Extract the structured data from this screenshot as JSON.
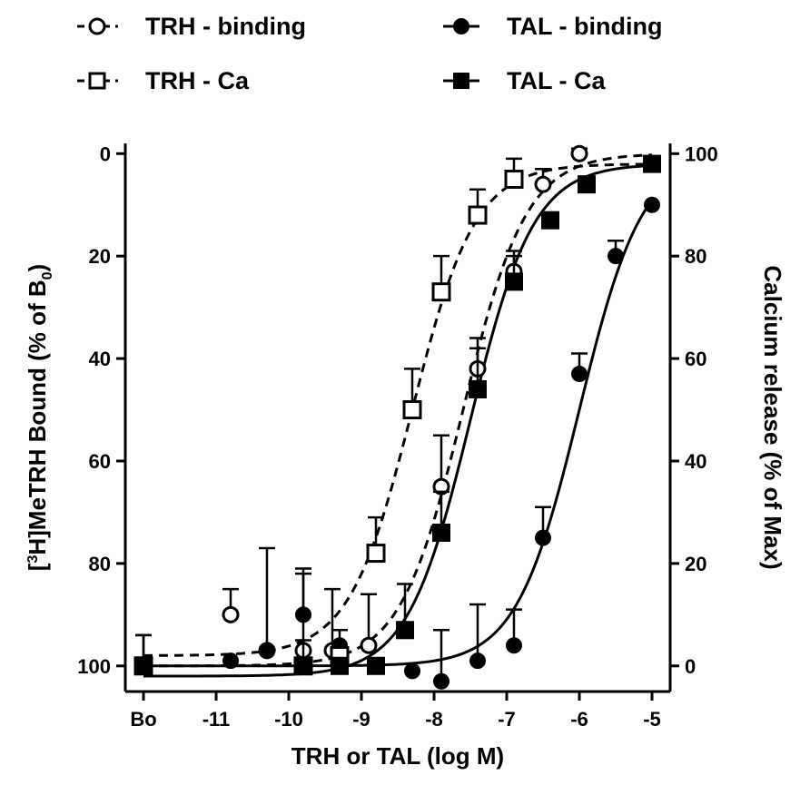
{
  "chart_data": {
    "type": "scatter",
    "title": "",
    "xlabel": "TRH or TAL (log M)",
    "ylabel_left": "[³H]MeTRH Bound (% of B₀)",
    "ylabel_left_parts": {
      "pre": "[",
      "sup": "3",
      "mid": "H]MeTRH Bound (% of B",
      "sub": "0",
      "post": ")"
    },
    "ylabel_right": "Calcium release (% of Max)",
    "x_ticks": [
      {
        "label": "Bo",
        "value": -12
      },
      {
        "label": "-11",
        "value": -11
      },
      {
        "label": "-10",
        "value": -10
      },
      {
        "label": "-9",
        "value": -9
      },
      {
        "label": "-8",
        "value": -8
      },
      {
        "label": "-7",
        "value": -7
      },
      {
        "label": "-6",
        "value": -6
      },
      {
        "label": "-5",
        "value": -5
      }
    ],
    "xlim": [
      -12.25,
      -4.75
    ],
    "ylim_left": [
      105,
      -2
    ],
    "y_ticks_left": [
      "0",
      "20",
      "40",
      "60",
      "80",
      "100"
    ],
    "ylim_right": [
      -5,
      102
    ],
    "y_ticks_right": [
      "0",
      "20",
      "40",
      "60",
      "80",
      "100"
    ],
    "grid": false,
    "legend_position": "top",
    "series": [
      {
        "name": "TRH - binding",
        "axis": "left",
        "marker": "open-circle",
        "line": "dashed",
        "points": [
          {
            "x": -12,
            "y": 100,
            "err": 6
          },
          {
            "x": -10.8,
            "y": 90,
            "err": 5
          },
          {
            "x": -10.3,
            "y": 97,
            "err": 20
          },
          {
            "x": -9.8,
            "y": 97,
            "err": 15
          },
          {
            "x": -9.4,
            "y": 97,
            "err": 12
          },
          {
            "x": -8.9,
            "y": 96,
            "err": 10
          },
          {
            "x": -7.9,
            "y": 65,
            "err": 10
          },
          {
            "x": -7.4,
            "y": 42,
            "err": 6
          },
          {
            "x": -6.9,
            "y": 23,
            "err": 4
          },
          {
            "x": -6.5,
            "y": 6,
            "err": 3
          },
          {
            "x": -6.0,
            "y": 0,
            "err": 1
          }
        ],
        "fit": {
          "top": 100,
          "bottom": 0,
          "logIC50": -7.6,
          "slope": 1
        }
      },
      {
        "name": "TAL - binding",
        "axis": "left",
        "marker": "filled-circle",
        "line": "solid",
        "points": [
          {
            "x": -12,
            "y": 100,
            "err": 0
          },
          {
            "x": -10.8,
            "y": 99,
            "err": 0
          },
          {
            "x": -10.3,
            "y": 97,
            "err": 0
          },
          {
            "x": -9.8,
            "y": 90,
            "err": 9
          },
          {
            "x": -9.3,
            "y": 96,
            "err": 0
          },
          {
            "x": -8.3,
            "y": 101,
            "err": 0
          },
          {
            "x": -7.9,
            "y": 103,
            "err": 10
          },
          {
            "x": -7.4,
            "y": 99,
            "err": 11
          },
          {
            "x": -6.9,
            "y": 96,
            "err": 7
          },
          {
            "x": -6.5,
            "y": 75,
            "err": 6
          },
          {
            "x": -6.0,
            "y": 43,
            "err": 4
          },
          {
            "x": -5.5,
            "y": 20,
            "err": 3
          },
          {
            "x": -5.0,
            "y": 10,
            "err": 0
          }
        ],
        "fit": {
          "top": 100,
          "bottom": 0,
          "logIC50": -6.0,
          "slope": 1
        }
      },
      {
        "name": "TRH - Ca",
        "axis": "right",
        "marker": "open-square",
        "line": "dashed",
        "points": [
          {
            "x": -12,
            "y": 0,
            "err": 6
          },
          {
            "x": -9.8,
            "y": 0,
            "err": 5
          },
          {
            "x": -9.3,
            "y": 2,
            "err": 5
          },
          {
            "x": -8.8,
            "y": 22,
            "err": 7
          },
          {
            "x": -8.3,
            "y": 50,
            "err": 8
          },
          {
            "x": -7.9,
            "y": 73,
            "err": 7
          },
          {
            "x": -7.4,
            "y": 88,
            "err": 5
          },
          {
            "x": -6.9,
            "y": 95,
            "err": 4
          }
        ],
        "fit": {
          "top": 98,
          "bottom": 2,
          "logIC50": -8.3,
          "slope": 1
        }
      },
      {
        "name": "TAL - Ca",
        "axis": "right",
        "marker": "filled-square",
        "line": "solid",
        "points": [
          {
            "x": -12,
            "y": 0,
            "err": 0
          },
          {
            "x": -9.8,
            "y": 0,
            "err": 0
          },
          {
            "x": -9.3,
            "y": 0,
            "err": 0
          },
          {
            "x": -8.8,
            "y": 0,
            "err": 0
          },
          {
            "x": -8.4,
            "y": 7,
            "err": 9
          },
          {
            "x": -7.9,
            "y": 26,
            "err": 8
          },
          {
            "x": -7.4,
            "y": 54,
            "err": 8
          },
          {
            "x": -6.9,
            "y": 75,
            "err": 5
          },
          {
            "x": -6.4,
            "y": 87,
            "err": 0
          },
          {
            "x": -5.9,
            "y": 94,
            "err": 0
          },
          {
            "x": -5.0,
            "y": 98,
            "err": 0
          }
        ],
        "fit": {
          "top": 98,
          "bottom": -2,
          "logIC50": -7.5,
          "slope": 1
        }
      }
    ]
  }
}
